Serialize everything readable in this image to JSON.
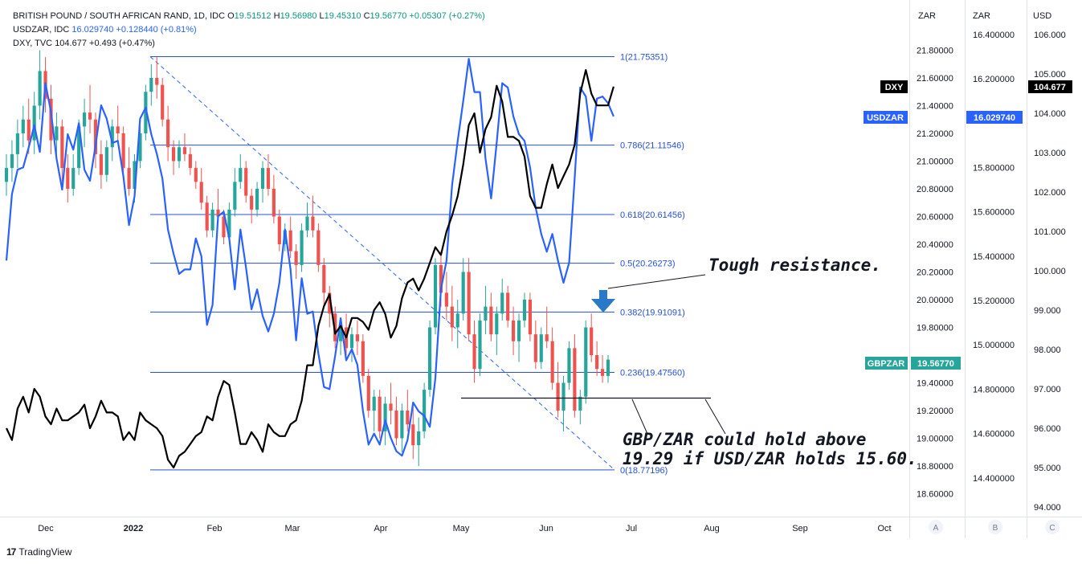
{
  "legend": {
    "gbpzar": {
      "name": "BRITISH POUND / SOUTH AFRICAN RAND, 1D, IDC",
      "o_label": "O",
      "o": "19.51512",
      "h_label": "H",
      "h": "19.56980",
      "l_label": "L",
      "l": "19.45310",
      "c_label": "C",
      "c": "19.56770",
      "chg": "+0.05307 (+0.27%)"
    },
    "usdzar": {
      "name": "USDZAR, IDC",
      "value": "16.029740",
      "chg": "+0.128440 (+0.81%)"
    },
    "dxy": {
      "name": "DXY, TVC",
      "value": "104.677",
      "chg": "+0.493 (+0.47%)"
    }
  },
  "axes": {
    "a_header": "ZAR",
    "b_header": "ZAR",
    "c_header": "USD",
    "a_footer": "A",
    "b_footer": "B",
    "c_footer": "C",
    "a_ticks": [
      "21.80000",
      "21.60000",
      "21.40000",
      "21.20000",
      "21.00000",
      "20.80000",
      "20.60000",
      "20.40000",
      "20.20000",
      "20.00000",
      "19.80000",
      "19.40000",
      "19.20000",
      "19.00000",
      "18.80000",
      "18.60000"
    ],
    "b_ticks": [
      "16.400000",
      "16.200000",
      "15.800000",
      "15.600000",
      "15.400000",
      "15.200000",
      "15.000000",
      "14.800000",
      "14.600000",
      "14.400000"
    ],
    "c_ticks": [
      "106.000",
      "105.000",
      "104.000",
      "103.000",
      "102.000",
      "101.000",
      "100.000",
      "99.000",
      "98.000",
      "97.000",
      "96.000",
      "95.000",
      "94.000"
    ],
    "x_ticks": [
      "Dec",
      "2022",
      "Feb",
      "Mar",
      "Apr",
      "May",
      "Jun",
      "Jul",
      "Aug",
      "Sep",
      "Oct"
    ]
  },
  "price_tags": {
    "dxy_label": "DXY",
    "dxy_value": "104.677",
    "usdzar_label": "USDZAR",
    "usdzar_value": "16.029740",
    "gbpzar_label": "GBPZAR",
    "gbpzar_value": "19.56770"
  },
  "fib_labels": [
    "1(21.75351)",
    "0.786(21.11546)",
    "0.618(20.61456)",
    "0.5(20.26273)",
    "0.382(19.91091)",
    "0.236(19.47560)",
    "0(18.77196)"
  ],
  "annotations": {
    "resistance": "Tough resistance.",
    "hold_line1": "GBP/ZAR could hold above",
    "hold_line2": "19.29 if USD/ZAR holds 15.60."
  },
  "footer": {
    "brand": "TradingView",
    "logo": "17"
  },
  "colors": {
    "up": "#26a69a",
    "down": "#ef5350",
    "usdzar": "#2962ff",
    "dxy": "#000000",
    "fib": "#2850d8",
    "arrow": "#2a78c8"
  },
  "chart_data": {
    "type": "line",
    "x_range": [
      "2021-11-18",
      "2022-10-15"
    ],
    "ylim_zar": [
      18.5,
      21.9
    ],
    "ylim_usdzar": [
      14.3,
      16.5
    ],
    "ylim_usd": [
      93.8,
      106.2
    ],
    "fibonacci": {
      "levels": [
        1,
        0.786,
        0.618,
        0.5,
        0.382,
        0.236,
        0
      ],
      "values": [
        21.75351,
        21.11546,
        20.61456,
        20.26273,
        19.91091,
        19.4756,
        18.77196
      ]
    },
    "support_level": 19.29,
    "gbpzar_ohlc": [
      [
        20.85,
        21.05,
        20.75,
        20.95
      ],
      [
        20.95,
        21.15,
        20.85,
        21.05
      ],
      [
        21.05,
        21.3,
        20.95,
        21.2
      ],
      [
        21.2,
        21.4,
        21.1,
        21.3
      ],
      [
        21.3,
        21.45,
        21.05,
        21.15
      ],
      [
        21.15,
        21.5,
        21.05,
        21.4
      ],
      [
        21.4,
        21.8,
        21.3,
        21.65
      ],
      [
        21.65,
        21.75,
        21.35,
        21.45
      ],
      [
        21.45,
        21.55,
        21.05,
        21.15
      ],
      [
        21.15,
        21.35,
        21.0,
        21.25
      ],
      [
        21.25,
        21.3,
        20.85,
        20.95
      ],
      [
        20.95,
        21.05,
        20.7,
        20.8
      ],
      [
        20.8,
        21.05,
        20.75,
        20.95
      ],
      [
        20.95,
        21.3,
        20.9,
        21.25
      ],
      [
        21.25,
        21.45,
        21.1,
        21.35
      ],
      [
        21.35,
        21.55,
        21.2,
        21.3
      ],
      [
        21.3,
        21.35,
        20.95,
        21.05
      ],
      [
        21.05,
        21.15,
        20.8,
        20.9
      ],
      [
        20.9,
        21.15,
        20.85,
        21.1
      ],
      [
        21.1,
        21.3,
        21.0,
        21.25
      ],
      [
        21.25,
        21.4,
        21.15,
        21.2
      ],
      [
        21.2,
        21.25,
        20.9,
        20.95
      ],
      [
        20.95,
        21.1,
        20.75,
        20.8
      ],
      [
        20.8,
        21.05,
        20.7,
        21.0
      ],
      [
        21.0,
        21.25,
        20.95,
        21.2
      ],
      [
        21.2,
        21.55,
        21.15,
        21.5
      ],
      [
        21.5,
        21.7,
        21.4,
        21.6
      ],
      [
        21.6,
        21.75,
        21.45,
        21.55
      ],
      [
        21.55,
        21.6,
        21.25,
        21.3
      ],
      [
        21.3,
        21.4,
        21.0,
        21.1
      ],
      [
        21.1,
        21.15,
        20.9,
        21.0
      ],
      [
        21.0,
        21.15,
        20.95,
        21.1
      ],
      [
        21.1,
        21.2,
        21.0,
        21.05
      ],
      [
        21.05,
        21.1,
        20.9,
        20.95
      ],
      [
        20.95,
        21.0,
        20.8,
        20.85
      ],
      [
        20.85,
        20.95,
        20.65,
        20.7
      ],
      [
        20.7,
        20.75,
        20.45,
        20.5
      ],
      [
        20.5,
        20.7,
        20.45,
        20.65
      ],
      [
        20.65,
        20.8,
        20.55,
        20.6
      ],
      [
        20.6,
        20.65,
        20.4,
        20.45
      ],
      [
        20.45,
        20.7,
        20.4,
        20.65
      ],
      [
        20.65,
        20.95,
        20.6,
        20.85
      ],
      [
        20.85,
        21.05,
        20.8,
        20.95
      ],
      [
        20.95,
        21.0,
        20.7,
        20.75
      ],
      [
        20.75,
        20.8,
        20.55,
        20.65
      ],
      [
        20.65,
        20.85,
        20.6,
        20.8
      ],
      [
        20.8,
        21.0,
        20.7,
        20.95
      ],
      [
        20.95,
        21.05,
        20.75,
        20.8
      ],
      [
        20.8,
        20.9,
        20.55,
        20.6
      ],
      [
        20.6,
        20.65,
        20.35,
        20.4
      ],
      [
        20.4,
        20.55,
        20.35,
        20.5
      ],
      [
        20.5,
        20.6,
        20.3,
        20.35
      ],
      [
        20.35,
        20.4,
        20.15,
        20.25
      ],
      [
        20.25,
        20.55,
        20.2,
        20.5
      ],
      [
        20.5,
        20.7,
        20.45,
        20.6
      ],
      [
        20.6,
        20.75,
        20.45,
        20.5
      ],
      [
        20.5,
        20.55,
        20.2,
        20.25
      ],
      [
        20.25,
        20.3,
        19.95,
        20.05
      ],
      [
        20.05,
        20.1,
        19.8,
        19.9
      ],
      [
        19.9,
        19.95,
        19.65,
        19.7
      ],
      [
        19.7,
        19.85,
        19.6,
        19.8
      ],
      [
        19.8,
        19.9,
        19.6,
        19.65
      ],
      [
        19.65,
        19.8,
        19.55,
        19.75
      ],
      [
        19.75,
        19.85,
        19.6,
        19.7
      ],
      [
        19.7,
        19.75,
        19.4,
        19.45
      ],
      [
        19.45,
        19.5,
        19.15,
        19.2
      ],
      [
        19.2,
        19.35,
        19.05,
        19.3
      ],
      [
        19.3,
        19.35,
        19.0,
        19.05
      ],
      [
        19.05,
        19.3,
        18.95,
        19.25
      ],
      [
        19.25,
        19.4,
        19.1,
        19.2
      ],
      [
        19.2,
        19.3,
        18.95,
        19.0
      ],
      [
        19.0,
        19.25,
        18.9,
        19.2
      ],
      [
        19.2,
        19.35,
        19.05,
        19.1
      ],
      [
        19.1,
        19.25,
        18.85,
        18.95
      ],
      [
        18.95,
        19.15,
        18.8,
        19.05
      ],
      [
        19.05,
        19.4,
        19.0,
        19.35
      ],
      [
        19.35,
        19.85,
        19.3,
        19.8
      ],
      [
        19.8,
        20.3,
        19.75,
        20.25
      ],
      [
        20.25,
        20.35,
        19.95,
        20.05
      ],
      [
        20.05,
        20.2,
        19.85,
        19.95
      ],
      [
        19.95,
        20.1,
        19.7,
        19.8
      ],
      [
        19.8,
        20.0,
        19.65,
        19.9
      ],
      [
        19.9,
        20.3,
        19.85,
        20.2
      ],
      [
        20.2,
        20.3,
        19.7,
        19.75
      ],
      [
        19.75,
        19.85,
        19.4,
        19.5
      ],
      [
        19.5,
        19.9,
        19.45,
        19.85
      ],
      [
        19.85,
        20.1,
        19.75,
        19.95
      ],
      [
        19.95,
        20.05,
        19.7,
        19.75
      ],
      [
        19.75,
        19.95,
        19.6,
        19.9
      ],
      [
        19.9,
        20.15,
        19.85,
        20.05
      ],
      [
        20.05,
        20.1,
        19.8,
        19.85
      ],
      [
        19.85,
        19.95,
        19.6,
        19.7
      ],
      [
        19.7,
        19.9,
        19.55,
        19.85
      ],
      [
        19.85,
        20.05,
        19.8,
        20.0
      ],
      [
        20.0,
        20.05,
        19.7,
        19.75
      ],
      [
        19.75,
        19.85,
        19.5,
        19.55
      ],
      [
        19.55,
        19.8,
        19.5,
        19.75
      ],
      [
        19.75,
        19.95,
        19.65,
        19.7
      ],
      [
        19.7,
        19.8,
        19.35,
        19.4
      ],
      [
        19.4,
        19.55,
        19.15,
        19.2
      ],
      [
        19.2,
        19.45,
        19.05,
        19.4
      ],
      [
        19.4,
        19.7,
        19.35,
        19.65
      ],
      [
        19.65,
        19.75,
        19.15,
        19.2
      ],
      [
        19.2,
        19.35,
        19.1,
        19.3
      ],
      [
        19.3,
        19.85,
        19.25,
        19.8
      ],
      [
        19.8,
        19.9,
        19.55,
        19.6
      ],
      [
        19.6,
        19.7,
        19.45,
        19.5
      ],
      [
        19.5,
        19.6,
        19.4,
        19.45
      ],
      [
        19.45,
        19.6,
        19.4,
        19.5677
      ]
    ],
    "usdzar_close": [
      15.38,
      15.68,
      15.79,
      15.8,
      15.89,
      15.99,
      15.87,
      16.18,
      16.05,
      15.84,
      15.7,
      15.95,
      15.88,
      16.0,
      15.79,
      15.74,
      15.9,
      16.08,
      16.02,
      15.91,
      15.92,
      15.76,
      15.54,
      15.67,
      16.02,
      16.07,
      15.95,
      15.86,
      15.75,
      15.52,
      15.41,
      15.32,
      15.34,
      15.34,
      15.48,
      15.4,
      15.09,
      15.18,
      15.58,
      15.6,
      15.48,
      15.25,
      15.52,
      15.35,
      15.16,
      15.25,
      15.13,
      15.06,
      15.14,
      15.28,
      15.52,
      15.34,
      15.02,
      15.3,
      15.14,
      15.15,
      14.96,
      14.81,
      14.8,
      14.95,
      15.12,
      14.93,
      14.98,
      14.91,
      14.7,
      14.55,
      14.6,
      14.55,
      14.66,
      14.58,
      14.52,
      14.5,
      14.57,
      14.74,
      14.7,
      14.68,
      14.63,
      14.85,
      15.25,
      15.38,
      15.72,
      15.92,
      16.1,
      16.29,
      16.14,
      16.14,
      15.84,
      15.66,
      15.91,
      16.18,
      16.16,
      16.03,
      15.95,
      15.92,
      15.8,
      15.62,
      15.5,
      15.42,
      15.5,
      15.38,
      15.28,
      15.37,
      15.75,
      16.16,
      16.12,
      15.92,
      16.11,
      16.12,
      16.09,
      16.03
    ],
    "dxy_close": [
      96.0,
      95.7,
      96.5,
      96.8,
      96.4,
      97.0,
      96.8,
      96.3,
      96.1,
      96.5,
      96.2,
      96.2,
      96.3,
      96.4,
      96.6,
      96.0,
      96.3,
      96.7,
      96.4,
      96.4,
      96.3,
      95.7,
      95.9,
      95.7,
      96.4,
      96.2,
      96.1,
      96.0,
      95.8,
      95.2,
      95.0,
      95.3,
      95.4,
      95.6,
      95.8,
      95.9,
      96.3,
      96.2,
      96.8,
      97.2,
      97.1,
      96.4,
      95.6,
      95.6,
      95.9,
      95.7,
      95.4,
      96.1,
      95.9,
      95.8,
      95.8,
      96.1,
      96.2,
      96.7,
      97.6,
      97.6,
      98.6,
      99.1,
      99.4,
      98.4,
      98.6,
      98.3,
      98.8,
      98.8,
      98.7,
      98.5,
      99.0,
      99.2,
      98.9,
      98.3,
      98.6,
      99.3,
      99.7,
      99.8,
      99.5,
      99.8,
      100.2,
      100.6,
      100.4,
      101.0,
      101.4,
      101.9,
      102.7,
      103.7,
      104.0,
      103.0,
      103.6,
      103.9,
      104.7,
      104.3,
      103.4,
      103.4,
      103.3,
      102.9,
      101.9,
      101.6,
      101.6,
      102.2,
      102.7,
      102.1,
      102.4,
      102.7,
      103.2,
      104.5,
      105.1,
      104.5,
      104.2,
      104.2,
      104.2,
      104.677
    ]
  }
}
